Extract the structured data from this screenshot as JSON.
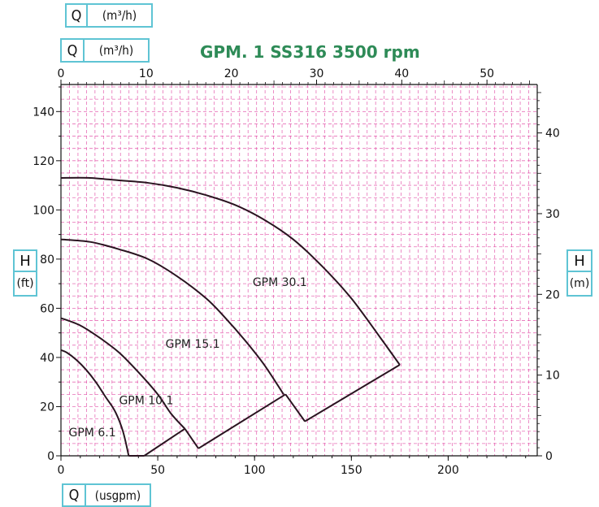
{
  "header": {
    "q_box_1": {
      "symbol": "Q",
      "unit": "(m³/h)"
    },
    "q_box_2": {
      "symbol": "Q",
      "unit": "(m³/h)"
    },
    "q_box_bottom": {
      "symbol": "Q",
      "unit": "(usgpm)"
    },
    "h_box_left": {
      "symbol": "H",
      "unit": "(ft)"
    },
    "h_box_right": {
      "symbol": "H",
      "unit": "(m)"
    }
  },
  "colors": {
    "title": "#2e8b57",
    "grid": "#e040a0",
    "curve": "#2a1420",
    "box_border": "#5fc4d4"
  },
  "chart_data": {
    "type": "line",
    "title": "GPM. 1 SS316 3500 rpm",
    "xlabel": "Q (usgpm)",
    "ylabel": "H (ft)",
    "xlim": [
      0,
      246
    ],
    "ylim": [
      0,
      151
    ],
    "x_ticks": [
      0,
      50,
      100,
      150,
      200
    ],
    "y_ticks": [
      0,
      20,
      40,
      60,
      80,
      100,
      120,
      140
    ],
    "top_axis": {
      "label": "Q (m³/h)",
      "ticks": [
        0,
        10,
        20,
        30,
        40,
        50
      ],
      "range": [
        0,
        55.9
      ]
    },
    "right_axis": {
      "label": "H (m)",
      "ticks": [
        0,
        10,
        20,
        30,
        40
      ],
      "range": [
        0,
        46
      ]
    },
    "grid": true,
    "series": [
      {
        "name": "GPM 6.1",
        "x": [
          0,
          3,
          8,
          13,
          18,
          23,
          28,
          32,
          35
        ],
        "y": [
          43,
          42,
          39,
          35,
          30,
          24,
          18,
          10,
          0
        ]
      },
      {
        "name": "GPM 10.1",
        "x": [
          0,
          10,
          20,
          30,
          40,
          50,
          57,
          64
        ],
        "y": [
          56,
          53,
          48,
          42,
          34,
          25,
          17,
          11
        ]
      },
      {
        "name": "GPM 15.1",
        "x": [
          0,
          15,
          30,
          45,
          60,
          75,
          85,
          95,
          105,
          115
        ],
        "y": [
          88,
          87,
          84,
          80,
          73,
          64,
          56,
          47,
          37,
          25
        ]
      },
      {
        "name": "GPM 30.1",
        "x": [
          0,
          15,
          30,
          45,
          60,
          75,
          90,
          105,
          120,
          135,
          150,
          165,
          175
        ],
        "y": [
          113,
          113,
          112,
          111,
          109,
          106,
          102,
          96,
          88,
          77,
          64,
          48,
          37
        ]
      }
    ],
    "efficiency_lines": [
      {
        "x": [
          35,
          43
        ],
        "y": [
          0,
          0
        ]
      },
      {
        "x": [
          43,
          64
        ],
        "y": [
          0,
          11
        ]
      },
      {
        "x": [
          64,
          71
        ],
        "y": [
          11,
          3
        ]
      },
      {
        "x": [
          71,
          116
        ],
        "y": [
          3,
          25
        ]
      },
      {
        "x": [
          116,
          126
        ],
        "y": [
          25,
          14
        ]
      },
      {
        "x": [
          126,
          175
        ],
        "y": [
          14,
          37
        ]
      }
    ],
    "labels": [
      {
        "text": "GPM 6.1",
        "x": 4,
        "y": 8
      },
      {
        "text": "GPM 10.1",
        "x": 30,
        "y": 21
      },
      {
        "text": "GPM 15.1",
        "x": 54,
        "y": 44
      },
      {
        "text": "GPM 30.1",
        "x": 99,
        "y": 69
      }
    ]
  }
}
